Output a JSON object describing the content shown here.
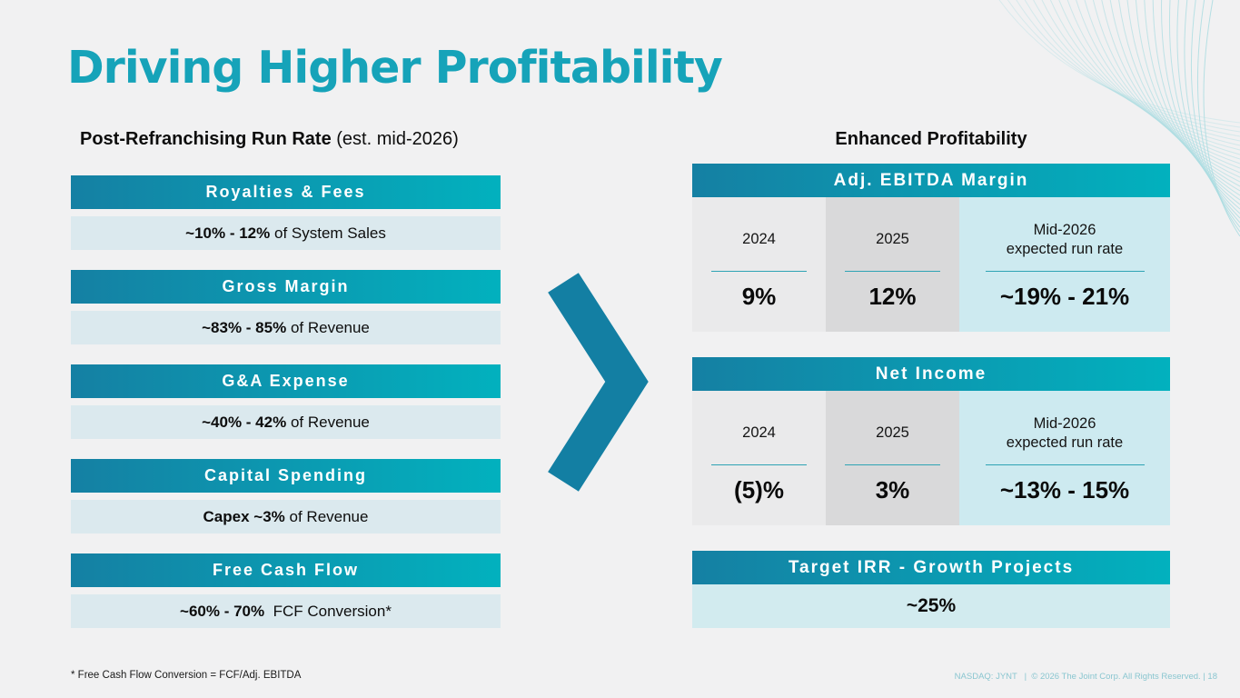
{
  "slide": {
    "title": "Driving Higher Profitability",
    "left_panel": {
      "heading_bold": "Post-Refranchising Run Rate",
      "heading_note": " (est. mid-2026)",
      "items": [
        {
          "label": "Royalties & Fees",
          "value_bold": "~10% - 12%",
          "value_normal": " of System Sales"
        },
        {
          "label": "Gross Margin",
          "value_bold": "~83% - 85%",
          "value_normal": " of Revenue"
        },
        {
          "label": "G&A Expense",
          "value_bold": "~40% - 42%",
          "value_normal": " of Revenue"
        },
        {
          "label": "Capital Spending",
          "value_bold": "Capex ~3%",
          "value_normal": " of Revenue"
        },
        {
          "label": "Free Cash Flow",
          "value_bold": "~60% - 70%",
          "value_normal": "  FCF Conversion*"
        }
      ]
    },
    "right_panel": {
      "heading": "Enhanced Profitability",
      "tables": [
        {
          "title": "Adj. EBITDA Margin",
          "columns": [
            {
              "period_top": "2024",
              "period_bottom": "",
              "value": "9%"
            },
            {
              "period_top": "2025",
              "period_bottom": "",
              "value": "12%"
            },
            {
              "period_top": "Mid-2026",
              "period_bottom": "expected run rate",
              "value": "~19% - 21%"
            }
          ]
        },
        {
          "title": "Net Income",
          "columns": [
            {
              "period_top": "2024",
              "period_bottom": "",
              "value": "(5)%"
            },
            {
              "period_top": "2025",
              "period_bottom": "",
              "value": "3%"
            },
            {
              "period_top": "Mid-2026",
              "period_bottom": "expected run rate",
              "value": "~13% - 15%"
            }
          ]
        }
      ],
      "target": {
        "title": "Target IRR - Growth Projects",
        "value": "~25%"
      }
    },
    "footnote": "* Free Cash Flow Conversion = FCF/Adj. EBITDA",
    "footer": "NASDAQ: JYNT   |  © 2026 The Joint Corp. All Rights Reserved. | 18"
  },
  "colors": {
    "slide_bg": "#f1f1f2",
    "title": "#16a3b9",
    "grad_a": "#1580a3",
    "grad_b": "#02b1be",
    "light_blue_row": "#dbe9ee",
    "gray_1": "#eaeaeb",
    "gray_2": "#d9d9da",
    "cyan_col": "#cdeaf0",
    "target_row": "#d2ebef",
    "rule": "#2fa3b4",
    "chevron": "#137fa3",
    "footer": "#8ac6d0",
    "wave": "#aadce1"
  }
}
